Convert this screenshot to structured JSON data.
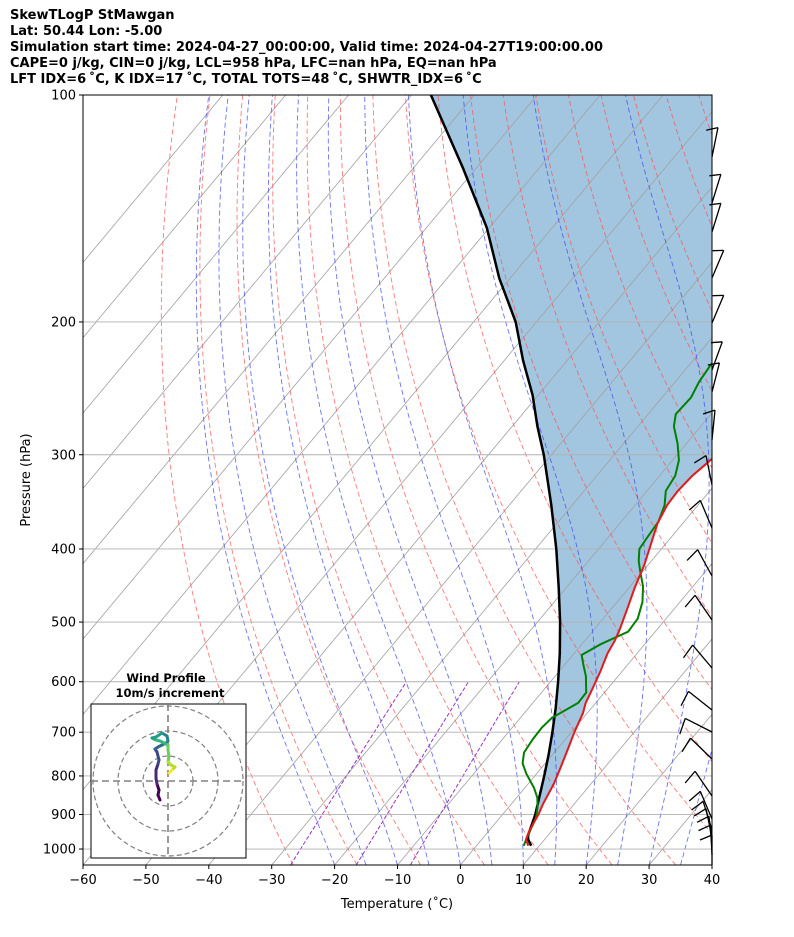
{
  "header": {
    "line1": "SkewTLogP StMawgan",
    "line2": "Lat: 50.44   Lon: -5.00",
    "line3": "Simulation start time: 2024-04-27_00:00:00, Valid time: 2024-04-27T19:00:00.00",
    "line4": "CAPE=0 j/kg, CIN=0 j/kg, LCL=958 hPa, LFC=nan hPa, EQ=nan hPa",
    "line5": "LFT IDX=6 ˚C, K IDX=17 ˚C, TOTAL TOTS=48 ˚C, SHWTR_IDX=6 ˚C"
  },
  "colors": {
    "temperature": "#e31a1c",
    "dewpoint": "#008000",
    "parcel": "#000000",
    "cape_fill": "#a3c6e0",
    "dry_adiabat": "#ff4d4d",
    "moist_adiabat": "#3a46f0",
    "mixing_ratio": "#9932cc",
    "isotherm": "#a0a0a0"
  },
  "chart_data": {
    "type": "line",
    "title": "SkewTLogP StMawgan",
    "xlabel": "Temperature (˚C)",
    "ylabel": "Pressure (hPa)",
    "xlim": [
      -60,
      40
    ],
    "ylim": [
      1050,
      100
    ],
    "y_scale": "log",
    "x_ticks": [
      "−60",
      "−50",
      "−40",
      "−30",
      "−20",
      "−10",
      "0",
      "10",
      "20",
      "30",
      "40"
    ],
    "y_ticks": [
      "100",
      "200",
      "300",
      "400",
      "500",
      "600",
      "700",
      "800",
      "900",
      "1000"
    ],
    "grid": true,
    "series": [
      {
        "role": "temperature",
        "points": [
          [
            8.2,
            990
          ],
          [
            7.0,
            970
          ],
          [
            6.5,
            950
          ],
          [
            6.0,
            920
          ],
          [
            5.7,
            900
          ],
          [
            5.0,
            870
          ],
          [
            4.1,
            820
          ],
          [
            3.0,
            780
          ],
          [
            1.8,
            740
          ],
          [
            0.5,
            700
          ],
          [
            -0.7,
            660
          ],
          [
            -1.6,
            640
          ],
          [
            -2.5,
            610
          ],
          [
            -3.5,
            580
          ],
          [
            -4.7,
            550
          ],
          [
            -5.2,
            530
          ],
          [
            -6.0,
            510
          ],
          [
            -7.5,
            480
          ],
          [
            -9.1,
            450
          ],
          [
            -10.6,
            420
          ],
          [
            -12.6,
            390
          ],
          [
            -14.0,
            370
          ],
          [
            -14.9,
            350
          ],
          [
            -15.1,
            335
          ],
          [
            -14.8,
            320
          ],
          [
            -14.0,
            305
          ],
          [
            -13.0,
            290
          ],
          [
            -12.0,
            278
          ],
          [
            -9.8,
            260
          ],
          [
            -7.6,
            242
          ],
          [
            -5.8,
            228
          ],
          [
            -4.1,
            214
          ],
          [
            -2.8,
            204
          ],
          [
            -1.9,
            196
          ],
          [
            -0.7,
            188
          ],
          [
            1.5,
            178
          ],
          [
            3.7,
            166
          ],
          [
            5.8,
            156
          ],
          [
            7.3,
            150
          ],
          [
            7.9,
            146
          ],
          [
            8.6,
            140
          ],
          [
            10.0,
            133
          ],
          [
            11.8,
            126
          ],
          [
            13.6,
            119
          ],
          [
            15.3,
            112
          ],
          [
            17.2,
            105
          ],
          [
            18.4,
            101
          ],
          [
            19.0,
            100
          ]
        ]
      },
      {
        "role": "dewpoint",
        "points": [
          [
            7.5,
            990
          ],
          [
            6.8,
            960
          ],
          [
            6.2,
            930
          ],
          [
            5.8,
            910
          ],
          [
            4.6,
            880
          ],
          [
            3.3,
            855
          ],
          [
            1.5,
            830
          ],
          [
            -1.6,
            795
          ],
          [
            -3.6,
            770
          ],
          [
            -4.8,
            745
          ],
          [
            -5.2,
            715
          ],
          [
            -5.3,
            690
          ],
          [
            -5.0,
            670
          ],
          [
            -2.8,
            640
          ],
          [
            -2.9,
            620
          ],
          [
            -5.1,
            590
          ],
          [
            -7.0,
            570
          ],
          [
            -8.6,
            553
          ],
          [
            -7.0,
            535
          ],
          [
            -4.3,
            515
          ],
          [
            -4.5,
            495
          ],
          [
            -6.0,
            470
          ],
          [
            -8.0,
            448
          ],
          [
            -10.2,
            430
          ],
          [
            -12.0,
            415
          ],
          [
            -13.5,
            400
          ],
          [
            -13.8,
            385
          ],
          [
            -14.1,
            368
          ],
          [
            -15.3,
            350
          ],
          [
            -17.0,
            335
          ],
          [
            -17.5,
            320
          ],
          [
            -19.0,
            305
          ],
          [
            -21.4,
            290
          ],
          [
            -24.3,
            275
          ],
          [
            -25.6,
            265
          ],
          [
            -25.4,
            252
          ],
          [
            -26.2,
            240
          ],
          [
            -26.6,
            228
          ],
          [
            -26.3,
            215
          ],
          [
            -26.0,
            205
          ],
          [
            -26.3,
            195
          ],
          [
            -26.8,
            185
          ],
          [
            -27.4,
            177
          ],
          [
            -26.5,
            170
          ],
          [
            -23.7,
            160
          ],
          [
            -21.0,
            150
          ],
          [
            -18.3,
            140
          ],
          [
            -15.5,
            130
          ],
          [
            -13.0,
            122
          ],
          [
            -10.8,
            115
          ],
          [
            -8.3,
            108
          ],
          [
            -6.2,
            102
          ],
          [
            -5.5,
            100
          ]
        ]
      },
      {
        "role": "parcel",
        "points": [
          [
            8.7,
            990
          ],
          [
            7.3,
            970
          ],
          [
            6.8,
            958
          ],
          [
            5.2,
            900
          ],
          [
            3.4,
            850
          ],
          [
            1.5,
            800
          ],
          [
            -0.6,
            750
          ],
          [
            -3.0,
            700
          ],
          [
            -5.7,
            650
          ],
          [
            -8.8,
            600
          ],
          [
            -12.3,
            550
          ],
          [
            -16.4,
            500
          ],
          [
            -21.2,
            450
          ],
          [
            -26.7,
            400
          ],
          [
            -33.3,
            350
          ],
          [
            -41.2,
            300
          ],
          [
            -46.0,
            275
          ],
          [
            -50.9,
            250
          ],
          [
            -57.0,
            225
          ],
          [
            -63.3,
            200
          ],
          [
            -71.7,
            175
          ],
          [
            -80.4,
            150
          ],
          [
            -92.1,
            125
          ],
          [
            -106.9,
            100
          ]
        ]
      }
    ],
    "wind_profile": {
      "title": "Wind Profile",
      "subtitle": "10m/s increment"
    }
  }
}
